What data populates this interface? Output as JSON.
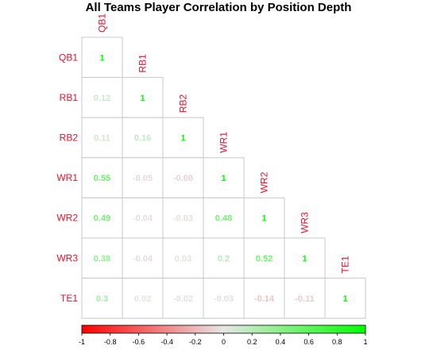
{
  "chart_data": {
    "type": "heatmap",
    "title": "All Teams Player Correlation by Position Depth",
    "variables": [
      "QB1",
      "RB1",
      "RB2",
      "WR1",
      "WR2",
      "WR3",
      "TE1"
    ],
    "matrix_lower": [
      [
        1
      ],
      [
        0.12,
        1
      ],
      [
        0.11,
        0.16,
        1
      ],
      [
        0.55,
        -0.05,
        -0.08,
        1
      ],
      [
        0.49,
        -0.04,
        -0.03,
        0.48,
        1
      ],
      [
        0.38,
        -0.04,
        0.03,
        0.2,
        0.52,
        1
      ],
      [
        0.3,
        0.02,
        -0.02,
        -0.03,
        -0.14,
        -0.11,
        1
      ]
    ],
    "value_labels": [
      [
        "1"
      ],
      [
        "0.12",
        "1"
      ],
      [
        "0.11",
        "0.16",
        "1"
      ],
      [
        "0.55",
        "-0.05",
        "-0.08",
        "1"
      ],
      [
        "0.49",
        "-0.04",
        "-0.03",
        "0.48",
        "1"
      ],
      [
        "0.38",
        "-0.04",
        "0.03",
        "0.2",
        "0.52",
        "1"
      ],
      [
        "0.3",
        "0.02",
        "-0.02",
        "-0.03",
        "-0.14",
        "-0.11",
        "1"
      ]
    ],
    "layout": "lower-triangle",
    "color_scale": {
      "range": [
        -1,
        1
      ],
      "low_color": "#ff0000",
      "mid_color": "#e6e6e6",
      "high_color": "#00ff00",
      "tick_values": [
        -1,
        -0.8,
        -0.6,
        -0.4,
        -0.2,
        0,
        0.2,
        0.4,
        0.6,
        0.8,
        1
      ],
      "tick_labels": [
        "-1",
        "-0.8",
        "-0.6",
        "-0.4",
        "-0.2",
        "0",
        "0.2",
        "0.4",
        "0.6",
        "0.8",
        "1"
      ],
      "position": "bottom"
    },
    "label_color": "#e8112d",
    "grid": true
  }
}
